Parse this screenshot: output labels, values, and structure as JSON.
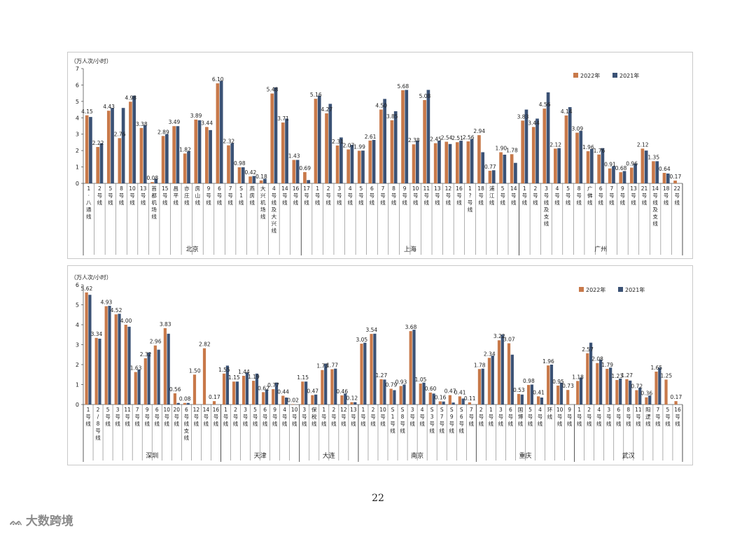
{
  "page_number": "22",
  "brand": {
    "icon": "chat-bubbles-icon",
    "text": "大数跨境"
  },
  "colors": {
    "series_2022": "#c8794a",
    "series_2021": "#3b5275"
  },
  "chart_data": [
    {
      "type": "bar",
      "ylabel": "（万人次/小时）",
      "ylim": [
        0,
        7
      ],
      "yticks": [
        0,
        1,
        2,
        3,
        4,
        5,
        6,
        7
      ],
      "legend": [
        "2022年",
        "2021年"
      ],
      "legend_position": "top-right",
      "grid": false,
      "groups": [
        {
          "city": "北京",
          "lines": [
            {
              "name": "1·八通线",
              "v2022": 4.15,
              "v2021": 4.05,
              "label": "4.15"
            },
            {
              "name": "2号线",
              "v2022": 2.22,
              "v2021": 2.45,
              "label": "2.22"
            },
            {
              "name": "5号线",
              "v2022": 4.43,
              "v2021": 4.6,
              "label": "4.43"
            },
            {
              "name": "8号线",
              "v2022": 2.76,
              "v2021": 4.6,
              "label": "2.76"
            },
            {
              "name": "10号线",
              "v2022": 4.98,
              "v2021": 5.35,
              "label": "4.98"
            },
            {
              "name": "13号线",
              "v2022": 3.38,
              "v2021": 3.55,
              "label": "3.38"
            },
            {
              "name": "首都机场线",
              "v2022": 0.08,
              "v2021": 0.28,
              "label": "0.08"
            },
            {
              "name": "15号线",
              "v2022": 2.89,
              "v2021": 3.0,
              "label": "2.89"
            },
            {
              "name": "昌平线",
              "v2022": 3.49,
              "v2021": 3.49,
              "label": "3.49"
            },
            {
              "name": "亦庄线",
              "v2022": 1.82,
              "v2021": 1.95,
              "label": "1.82"
            },
            {
              "name": "房山线",
              "v2022": 3.89,
              "v2021": 3.85,
              "label": "3.89"
            },
            {
              "name": "9号线",
              "v2022": 3.44,
              "v2021": 3.25,
              "label": "3.44"
            },
            {
              "name": "6号线",
              "v2022": 6.1,
              "v2021": 6.25,
              "label": "6.10"
            },
            {
              "name": "7号线",
              "v2022": 2.32,
              "v2021": 2.45,
              "label": "2.32"
            },
            {
              "name": "S1线",
              "v2022": 0.98,
              "v2021": 0.98,
              "label": "0.98"
            },
            {
              "name": "燕房线",
              "v2022": 0.42,
              "v2021": 0.45,
              "label": "0.42"
            },
            {
              "name": "大兴机场线",
              "v2022": 0.18,
              "v2021": 0.28,
              "label": "0.18"
            },
            {
              "name": "4号线及大兴线",
              "v2022": 5.48,
              "v2021": 5.85,
              "label": "5.48"
            },
            {
              "name": "14号线",
              "v2022": 3.71,
              "v2021": 3.95,
              "label": "3.71"
            },
            {
              "name": "16号线",
              "v2022": 1.43,
              "v2021": 1.43,
              "label": "1.43"
            }
          ]
        },
        {
          "city": "上海",
          "lines": [
            {
              "name": "17号线",
              "v2022": 0.69,
              "v2021": 0.2,
              "label": "0.69"
            },
            {
              "name": "1号线",
              "v2022": 5.16,
              "v2021": 5.35,
              "label": "5.16"
            },
            {
              "name": "2号线",
              "v2022": 4.27,
              "v2021": 4.85,
              "label": "4.27"
            },
            {
              "name": "3号线",
              "v2022": 2.31,
              "v2021": 2.8,
              "label": "2.31"
            },
            {
              "name": "4号线",
              "v2022": 2.07,
              "v2021": 2.35,
              "label": "2.07"
            },
            {
              "name": "5号线",
              "v2022": 1.99,
              "v2021": 2.0,
              "label": "1.99"
            },
            {
              "name": "6号线",
              "v2022": 2.61,
              "v2021": 2.65,
              "label": "2.61"
            },
            {
              "name": "7号线",
              "v2022": 4.5,
              "v2021": 5.15,
              "label": "4.50"
            },
            {
              "name": "8号线",
              "v2022": 3.85,
              "v2021": 4.4,
              "label": "3.85"
            },
            {
              "name": "9号线",
              "v2022": 5.68,
              "v2021": 5.7,
              "label": "5.68"
            },
            {
              "name": "10号线",
              "v2022": 2.38,
              "v2021": 2.6,
              "label": "2.38"
            },
            {
              "name": "11号线",
              "v2022": 5.08,
              "v2021": 5.7,
              "label": "5.08"
            },
            {
              "name": "13号线",
              "v2022": 2.45,
              "v2021": 2.6,
              "label": "2.45"
            },
            {
              "name": "12号线",
              "v2022": 2.54,
              "v2021": 2.4,
              "label": "2.54"
            },
            {
              "name": "16号线",
              "v2022": 2.51,
              "v2021": 2.6,
              "label": "2.51"
            },
            {
              "name": "1?号线",
              "v2022": 2.56,
              "v2021": 2.7,
              "label": "2.56"
            },
            {
              "name": "18号线",
              "v2022": 2.94,
              "v2021": 1.9,
              "label": "2.94"
            },
            {
              "name": "浦江线",
              "v2022": 0.77,
              "v2021": 0.8,
              "label": "0.77"
            },
            {
              "name": "5号线",
              "v2022": 1.9,
              "v2021": 1.75,
              "label": "1.90"
            },
            {
              "name": "14号线",
              "v2022": 1.78,
              "v2021": 1.25,
              "label": "1.78"
            }
          ]
        },
        {
          "city": "广州",
          "lines": [
            {
              "name": "1号线",
              "v2022": 3.83,
              "v2021": 4.5,
              "label": "3.83"
            },
            {
              "name": "2号线",
              "v2022": 3.44,
              "v2021": 3.95,
              "label": "3.44"
            },
            {
              "name": "3号线及支线",
              "v2022": 4.56,
              "v2021": 5.55,
              "label": "4.56"
            },
            {
              "name": "4号线",
              "v2022": 2.12,
              "v2021": 2.15,
              "label": "2.12"
            },
            {
              "name": "5号线",
              "v2022": 4.14,
              "v2021": 4.65,
              "label": "4.14"
            },
            {
              "name": "8号线",
              "v2022": 3.09,
              "v2021": 3.2,
              "label": "3.09"
            },
            {
              "name": "广佛线",
              "v2022": 1.96,
              "v2021": 2.1,
              "label": "1.96"
            },
            {
              "name": "6号线",
              "v2022": 1.76,
              "v2021": 2.15,
              "label": "1.76"
            },
            {
              "name": "7号线",
              "v2022": 0.91,
              "v2021": 1.05,
              "label": "0.91"
            },
            {
              "name": "9号线",
              "v2022": 0.68,
              "v2021": 0.75,
              "label": "0.68"
            },
            {
              "name": "13号线",
              "v2022": 0.96,
              "v2021": 1.2,
              "label": "0.96"
            },
            {
              "name": "21号线",
              "v2022": 2.12,
              "v2021": 2.0,
              "label": "2.12"
            },
            {
              "name": "14号线及支线",
              "v2022": 1.35,
              "v2021": 1.35,
              "label": "1.35"
            },
            {
              "name": "18号线",
              "v2022": 0.64,
              "v2021": 0.6,
              "label": "0.64"
            },
            {
              "name": "22号线",
              "v2022": 0.17,
              "v2021": 0.0,
              "label": "0.17"
            }
          ]
        }
      ]
    },
    {
      "type": "bar",
      "ylabel": "（万人次/小时）",
      "ylim": [
        0,
        6
      ],
      "yticks": [
        0,
        1,
        2,
        3,
        4,
        5,
        6
      ],
      "legend": [
        "2022年",
        "2021年"
      ],
      "legend_position": "top-right",
      "grid": false,
      "groups": [
        {
          "city": "深圳",
          "lines": [
            {
              "name": "1号线",
              "v2022": 5.62,
              "v2021": 5.5,
              "label": "5.62"
            },
            {
              "name": "2/8号线",
              "v2022": 3.34,
              "v2021": 3.3,
              "label": "3.34"
            },
            {
              "name": "5号线",
              "v2022": 4.93,
              "v2021": 4.95,
              "label": "4.93"
            },
            {
              "name": "3号线",
              "v2022": 4.52,
              "v2021": 4.55,
              "label": "4.52"
            },
            {
              "name": "11号线",
              "v2022": 4.0,
              "v2021": 3.9,
              "label": "4.00"
            },
            {
              "name": "7号线",
              "v2022": 1.63,
              "v2021": 1.75,
              "label": "1.63"
            },
            {
              "name": "9号线",
              "v2022": 2.32,
              "v2021": 2.6,
              "label": "2.32"
            },
            {
              "name": "6号线",
              "v2022": 2.96,
              "v2021": 2.75,
              "label": "2.96"
            },
            {
              "name": "10号线",
              "v2022": 3.83,
              "v2021": 3.55,
              "label": "3.83"
            },
            {
              "name": "20号线",
              "v2022": 0.56,
              "v2021": 0.08,
              "label": "0.56"
            },
            {
              "name": "6号线支线",
              "v2022": 0.08,
              "v2021": 0.08,
              "label": "0.08"
            },
            {
              "name": "12号线",
              "v2022": 1.5,
              "v2021": 0.0,
              "label": "1.50"
            },
            {
              "name": "14号线",
              "v2022": 2.82,
              "v2021": 0.0,
              "label": "2.82"
            },
            {
              "name": "16号线",
              "v2022": 0.17,
              "v2021": 0.0,
              "label": "0.17"
            }
          ]
        },
        {
          "city": "天津",
          "lines": [
            {
              "name": "1号线",
              "v2022": 1.55,
              "v2021": 1.95,
              "label": "1.55"
            },
            {
              "name": "2号线",
              "v2022": 1.15,
              "v2021": 1.15,
              "label": "1.15"
            },
            {
              "name": "3号线",
              "v2022": 1.44,
              "v2021": 1.6,
              "label": "1.44"
            },
            {
              "name": "5号线",
              "v2022": 1.19,
              "v2021": 1.55,
              "label": "1.19"
            },
            {
              "name": "6号线",
              "v2022": 0.62,
              "v2021": 0.75,
              "label": "0.62"
            },
            {
              "name": "9号线",
              "v2022": 0.77,
              "v2021": 1.1,
              "label": "0.77"
            },
            {
              "name": "4号线",
              "v2022": 0.44,
              "v2021": 0.35,
              "label": "0.44"
            },
            {
              "name": "10号线",
              "v2022": 0.02,
              "v2021": 0.0,
              "label": "0.02"
            }
          ]
        },
        {
          "city": "大连",
          "lines": [
            {
              "name": "3号线",
              "v2022": 1.15,
              "v2021": 1.15,
              "label": "1.15"
            },
            {
              "name": "保税线",
              "v2022": 0.47,
              "v2021": 0.5,
              "label": "0.47"
            },
            {
              "name": "1号线",
              "v2022": 1.73,
              "v2021": 2.05,
              "label": "1.73"
            },
            {
              "name": "2号线",
              "v2022": 1.77,
              "v2021": 1.8,
              "label": "1.77"
            },
            {
              "name": "12号线",
              "v2022": 0.46,
              "v2021": 0.55,
              "label": "0.46"
            },
            {
              "name": "13号线",
              "v2022": 0.12,
              "v2021": 0.12,
              "label": "0.12"
            }
          ]
        },
        {
          "city": "南京",
          "lines": [
            {
              "name": "1号线",
              "v2022": 3.05,
              "v2021": 3.1,
              "label": "3.05"
            },
            {
              "name": "2号线",
              "v2022": 3.54,
              "v2021": 3.55,
              "label": "3.54"
            },
            {
              "name": "10号线",
              "v2022": 1.27,
              "v2021": 1.25,
              "label": "1.27"
            },
            {
              "name": "S1号线",
              "v2022": 0.79,
              "v2021": 0.72,
              "label": "0.79"
            },
            {
              "name": "S8号线",
              "v2022": 0.93,
              "v2021": 1.0,
              "label": "0.93"
            },
            {
              "name": "3号线",
              "v2022": 3.68,
              "v2021": 3.75,
              "label": "3.68"
            },
            {
              "name": "4号线",
              "v2022": 1.05,
              "v2021": 1.1,
              "label": "1.05"
            },
            {
              "name": "S3号线",
              "v2022": 0.6,
              "v2021": 0.55,
              "label": "0.60"
            },
            {
              "name": "S7号线",
              "v2022": 0.16,
              "v2021": 0.15,
              "label": "0.16"
            },
            {
              "name": "S9号线",
              "v2022": 0.47,
              "v2021": 0.1,
              "label": "0.47"
            },
            {
              "name": "S6号线",
              "v2022": 0.41,
              "v2021": 0.3,
              "label": "0.41"
            },
            {
              "name": "7号线",
              "v2022": 0.11,
              "v2021": 0.0,
              "label": "0.11"
            }
          ]
        },
        {
          "city": "重庆",
          "lines": [
            {
              "name": "2号线",
              "v2022": 1.78,
              "v2021": 1.8,
              "label": "1.78"
            },
            {
              "name": "1号线",
              "v2022": 2.34,
              "v2021": 2.45,
              "label": "2.34"
            },
            {
              "name": "3号线",
              "v2022": 3.22,
              "v2021": 3.5,
              "label": "3.22"
            },
            {
              "name": "6号线",
              "v2022": 3.07,
              "v2021": 2.5,
              "label": "3.07"
            },
            {
              "name": "国博线",
              "v2022": 0.53,
              "v2021": 0.5,
              "label": "0.53"
            },
            {
              "name": "5号线",
              "v2022": 0.98,
              "v2021": 1.0,
              "label": "0.98"
            },
            {
              "name": "4号线",
              "v2022": 0.41,
              "v2021": 0.35,
              "label": "0.41"
            },
            {
              "name": "环线",
              "v2022": 1.96,
              "v2021": 2.0,
              "label": "1.96"
            },
            {
              "name": "10号线",
              "v2022": 0.95,
              "v2021": 1.1,
              "label": "0.95"
            },
            {
              "name": "9号线",
              "v2022": 0.73,
              "v2021": 0.0,
              "label": "0.73"
            }
          ]
        },
        {
          "city": "武汉",
          "lines": [
            {
              "name": "1号线",
              "v2022": 1.18,
              "v2021": 1.35,
              "label": "1.18"
            },
            {
              "name": "2号线",
              "v2022": 2.57,
              "v2021": 3.1,
              "label": "2.57"
            },
            {
              "name": "4号线",
              "v2022": 2.08,
              "v2021": 2.25,
              "label": "2.08"
            },
            {
              "name": "3号线",
              "v2022": 1.79,
              "v2021": 1.85,
              "label": "1.79"
            },
            {
              "name": "6号线",
              "v2022": 1.23,
              "v2021": 1.3,
              "label": "1.23"
            },
            {
              "name": "8号线",
              "v2022": 1.27,
              "v2021": 1.2,
              "label": "1.27"
            },
            {
              "name": "11号线",
              "v2022": 0.72,
              "v2021": 0.85,
              "label": "0.72"
            },
            {
              "name": "阳逻线",
              "v2022": 0.36,
              "v2021": 0.45,
              "label": "0.36"
            },
            {
              "name": "7号线",
              "v2022": 1.65,
              "v2021": 1.85,
              "label": "1.65"
            },
            {
              "name": "5号线",
              "v2022": 1.25,
              "v2021": 0.0,
              "label": "1.25"
            },
            {
              "name": "16号线",
              "v2022": 0.17,
              "v2021": 0.0,
              "label": "0.17"
            }
          ]
        }
      ]
    }
  ]
}
